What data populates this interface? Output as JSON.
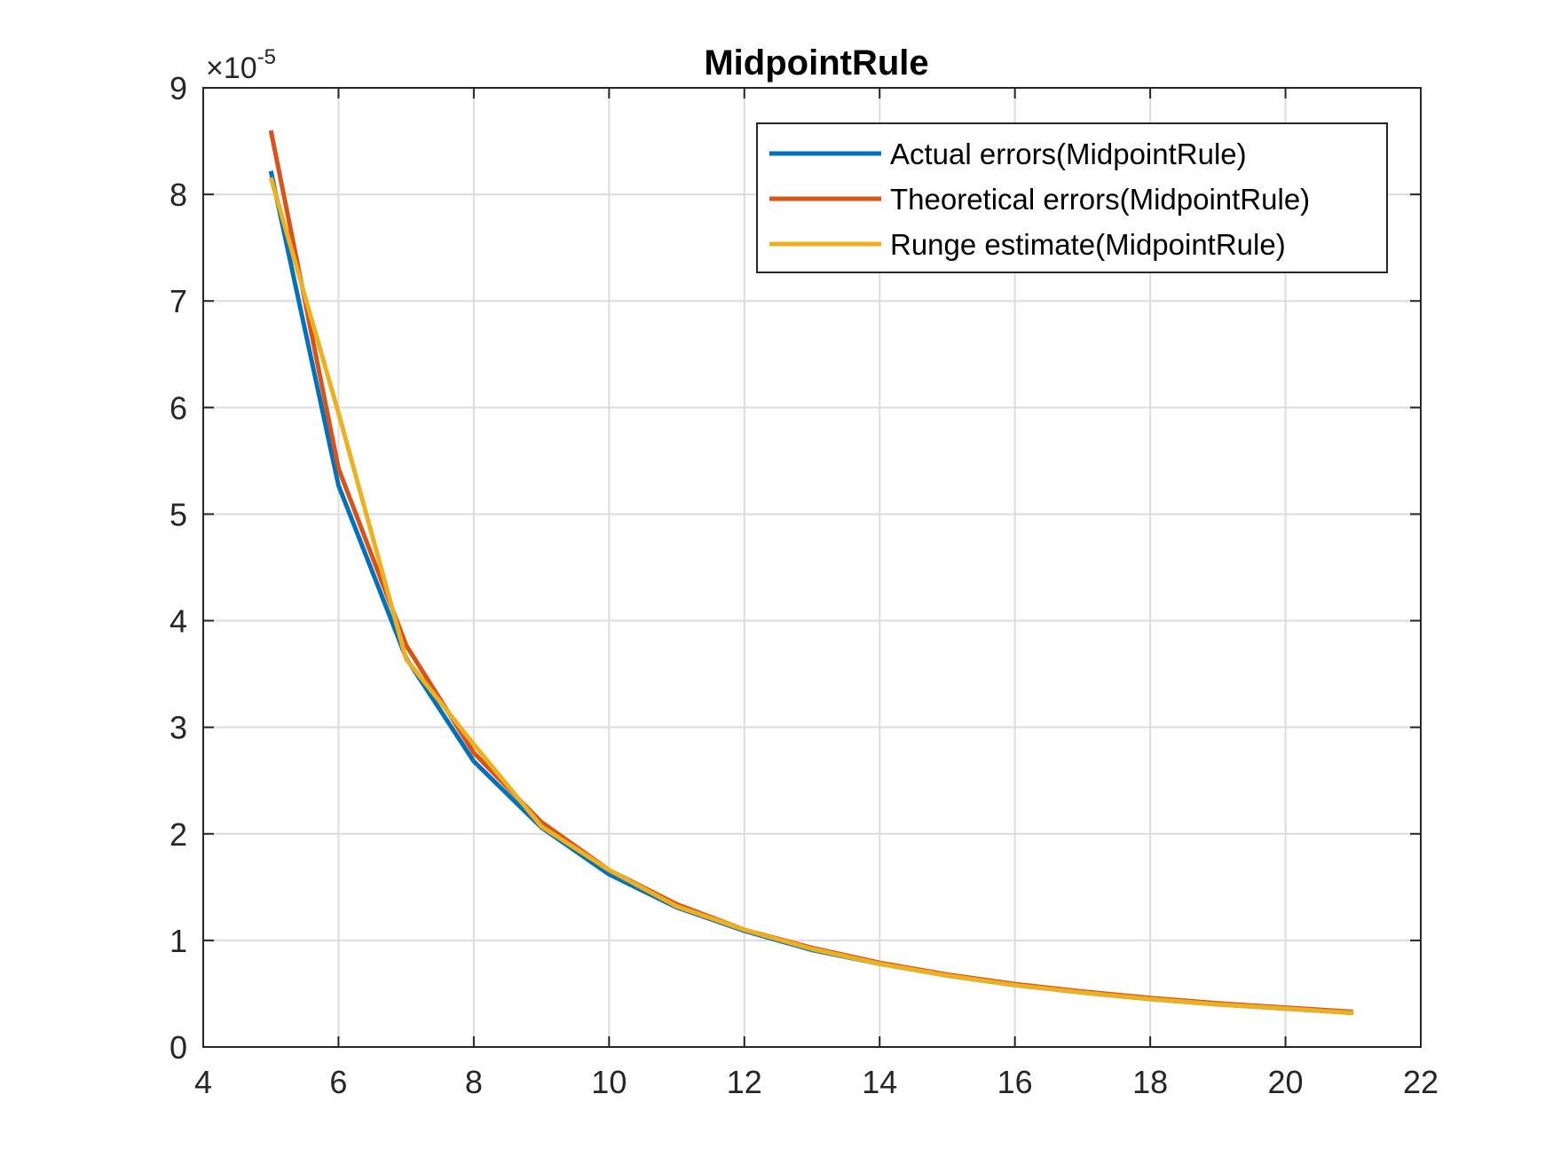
{
  "chart_data": {
    "type": "line",
    "title": "MidpointRule",
    "xlabel": "",
    "ylabel": "",
    "xlim": [
      4,
      22
    ],
    "ylim": [
      0,
      9
    ],
    "xticks": [
      "4",
      "6",
      "8",
      "10",
      "12",
      "14",
      "16",
      "18",
      "20",
      "22"
    ],
    "yticks": [
      "0",
      "1",
      "2",
      "3",
      "4",
      "5",
      "6",
      "7",
      "8",
      "9"
    ],
    "y_exponent": {
      "base": "×10",
      "power": "-5"
    },
    "grid": true,
    "legend_position": "top-right",
    "x": [
      5,
      6,
      7,
      8,
      9,
      10,
      11,
      12,
      13,
      14,
      15,
      16,
      17,
      18,
      19,
      20,
      21
    ],
    "series": [
      {
        "name": "Actual errors(MidpointRule)",
        "color": "#0072BD",
        "values": [
          8.22,
          5.27,
          3.65,
          2.68,
          2.06,
          1.62,
          1.31,
          1.09,
          0.91,
          0.78,
          0.67,
          0.58,
          0.51,
          0.45,
          0.4,
          0.36,
          0.32
        ]
      },
      {
        "name": "Theoretical errors(MidpointRule)",
        "color": "#D95319",
        "values": [
          8.6,
          5.43,
          3.77,
          2.76,
          2.11,
          1.66,
          1.34,
          1.1,
          0.93,
          0.79,
          0.68,
          0.59,
          0.52,
          0.46,
          0.41,
          0.37,
          0.33
        ]
      },
      {
        "name": "Runge estimate(MidpointRule)",
        "color": "#EDB120",
        "values": [
          8.16,
          5.95,
          3.64,
          2.84,
          2.07,
          1.66,
          1.32,
          1.1,
          0.92,
          0.78,
          0.67,
          0.58,
          0.51,
          0.45,
          0.4,
          0.36,
          0.32
        ]
      }
    ]
  }
}
